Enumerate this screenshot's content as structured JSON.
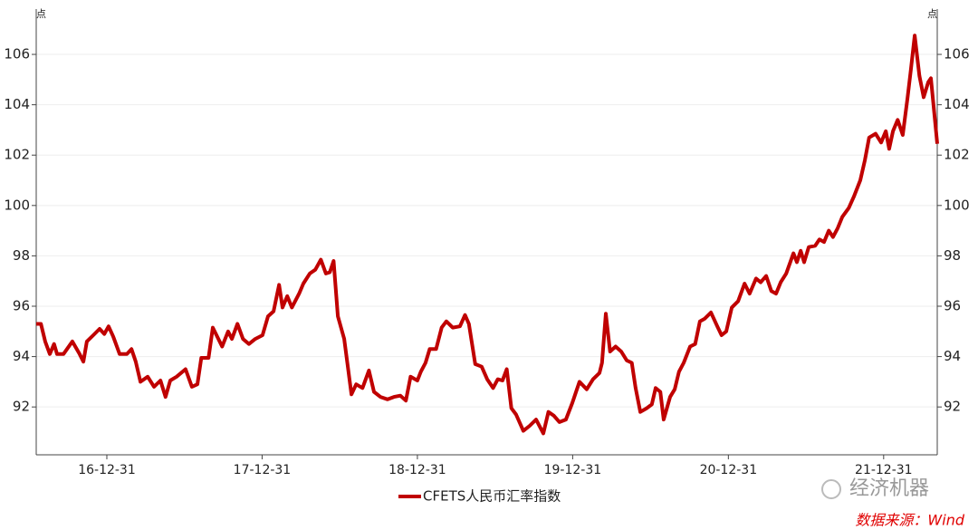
{
  "chart_data": {
    "type": "line",
    "y_unit": "点",
    "legend": "bottom",
    "grid": true,
    "xlim": [
      "16-07-18",
      "22-05-06"
    ],
    "xticks": [
      "16-12-31",
      "17-12-31",
      "18-12-31",
      "19-12-31",
      "20-12-31",
      "21-12-31"
    ],
    "ylim": [
      90.1,
      107.8
    ],
    "yticks": [
      92,
      94,
      96,
      98,
      100,
      102,
      104,
      106
    ],
    "y2lim": [
      90.1,
      107.8
    ],
    "y2ticks": [
      92,
      94,
      96,
      98,
      100,
      102,
      104,
      106
    ],
    "x": [
      "16-07-18",
      "16-07-29",
      "16-08-08",
      "16-08-19",
      "16-08-29",
      "16-09-05",
      "16-09-20",
      "16-10-11",
      "16-10-28",
      "16-11-06",
      "16-11-14",
      "16-11-29",
      "16-12-14",
      "16-12-25",
      "17-01-04",
      "17-01-15",
      "17-01-30",
      "17-02-16",
      "17-02-27",
      "17-03-09",
      "17-03-20",
      "17-04-06",
      "17-04-21",
      "17-05-06",
      "17-05-18",
      "17-05-29",
      "17-06-13",
      "17-07-04",
      "17-07-19",
      "17-08-01",
      "17-08-10",
      "17-08-27",
      "17-09-06",
      "17-09-28",
      "17-10-12",
      "17-10-21",
      "17-11-03",
      "17-11-16",
      "17-11-30",
      "17-12-15",
      "18-01-01",
      "18-01-14",
      "18-01-27",
      "18-02-09",
      "18-02-17",
      "18-02-28",
      "18-03-11",
      "18-03-28",
      "18-04-07",
      "18-04-22",
      "18-05-05",
      "18-05-18",
      "18-05-30",
      "18-06-08",
      "18-06-17",
      "18-06-27",
      "18-07-12",
      "18-07-29",
      "18-08-09",
      "18-08-24",
      "18-09-08",
      "18-09-20",
      "18-10-05",
      "18-10-22",
      "18-11-06",
      "18-11-21",
      "18-12-04",
      "18-12-15",
      "18-12-31",
      "19-01-08",
      "19-01-19",
      "19-01-29",
      "19-02-13",
      "19-02-26",
      "19-03-09",
      "19-03-24",
      "19-04-10",
      "19-04-22",
      "19-05-01",
      "19-05-16",
      "19-05-31",
      "19-06-13",
      "19-06-27",
      "19-07-08",
      "19-07-19",
      "19-07-29",
      "19-08-09",
      "19-08-20",
      "19-09-06",
      "19-09-21",
      "19-10-06",
      "19-10-23",
      "19-11-04",
      "19-11-17",
      "19-11-30",
      "19-12-15",
      "19-12-30",
      "20-01-16",
      "20-02-02",
      "20-02-17",
      "20-03-03",
      "20-03-09",
      "20-03-18",
      "20-03-28",
      "20-04-10",
      "20-04-23",
      "20-05-06",
      "20-05-18",
      "20-05-27",
      "20-06-07",
      "20-06-22",
      "20-07-04",
      "20-07-13",
      "20-07-24",
      "20-08-01",
      "20-08-16",
      "20-08-27",
      "20-09-06",
      "20-09-17",
      "20-10-02",
      "20-10-14",
      "20-10-25",
      "20-11-05",
      "20-11-20",
      "20-12-05",
      "20-12-15",
      "20-12-26",
      "21-01-08",
      "21-01-23",
      "21-02-07",
      "21-02-19",
      "21-03-06",
      "21-03-17",
      "21-03-30",
      "21-04-11",
      "21-04-22",
      "21-05-03",
      "21-05-16",
      "21-06-02",
      "21-06-10",
      "21-06-19",
      "21-06-27",
      "21-07-08",
      "21-07-23",
      "21-08-02",
      "21-08-13",
      "21-08-24",
      "21-09-03",
      "21-09-14",
      "21-09-25",
      "21-10-10",
      "21-10-22",
      "21-11-06",
      "21-11-17",
      "21-11-27",
      "21-12-12",
      "21-12-25",
      "22-01-05",
      "22-01-13",
      "22-01-22",
      "22-02-02",
      "22-02-14",
      "22-02-25",
      "22-03-05",
      "22-03-14",
      "22-03-25",
      "22-04-04",
      "22-04-15",
      "22-04-21",
      "22-05-06"
    ],
    "series": [
      {
        "name": "CFETS人民币汇率指数",
        "color": "#c00000",
        "values": [
          95.3,
          95.3,
          94.6,
          94.1,
          94.5,
          94.1,
          94.1,
          94.6,
          94.1,
          93.8,
          94.6,
          94.85,
          95.1,
          94.9,
          95.2,
          94.8,
          94.1,
          94.1,
          94.3,
          93.8,
          93.0,
          93.2,
          92.8,
          93.05,
          92.4,
          93.05,
          93.2,
          93.5,
          92.8,
          92.9,
          93.95,
          93.95,
          95.15,
          94.4,
          95.0,
          94.7,
          95.3,
          94.7,
          94.5,
          94.7,
          94.85,
          95.6,
          95.8,
          96.85,
          95.95,
          96.4,
          95.95,
          96.5,
          96.9,
          97.3,
          97.45,
          97.85,
          97.3,
          97.35,
          97.8,
          95.6,
          94.7,
          92.5,
          92.9,
          92.75,
          93.45,
          92.6,
          92.4,
          92.3,
          92.4,
          92.45,
          92.25,
          93.2,
          93.05,
          93.4,
          93.75,
          94.3,
          94.3,
          95.15,
          95.4,
          95.15,
          95.2,
          95.65,
          95.3,
          93.7,
          93.6,
          93.1,
          92.75,
          93.1,
          93.05,
          93.5,
          91.95,
          91.7,
          91.05,
          91.25,
          91.5,
          90.95,
          91.8,
          91.65,
          91.4,
          91.5,
          92.15,
          93.0,
          92.7,
          93.1,
          93.35,
          93.75,
          95.7,
          94.2,
          94.4,
          94.2,
          93.85,
          93.75,
          92.75,
          91.8,
          91.95,
          92.1,
          92.75,
          92.6,
          91.5,
          92.4,
          92.7,
          93.4,
          93.75,
          94.4,
          94.5,
          95.4,
          95.5,
          95.75,
          95.2,
          94.85,
          95.0,
          95.95,
          96.2,
          96.9,
          96.5,
          97.1,
          96.95,
          97.2,
          96.6,
          96.5,
          96.95,
          97.3,
          98.1,
          97.75,
          98.2,
          97.75,
          98.35,
          98.4,
          98.65,
          98.55,
          99.0,
          98.75,
          99.1,
          99.55,
          99.9,
          100.35,
          101.0,
          101.8,
          102.7,
          102.85,
          102.5,
          102.95,
          102.25,
          102.95,
          103.4,
          102.8,
          104.25,
          105.4,
          106.75,
          105.15,
          104.3,
          104.9,
          105.05,
          102.45
        ]
      }
    ],
    "watermark": "经济机器",
    "source": "数据来源：Wind"
  }
}
